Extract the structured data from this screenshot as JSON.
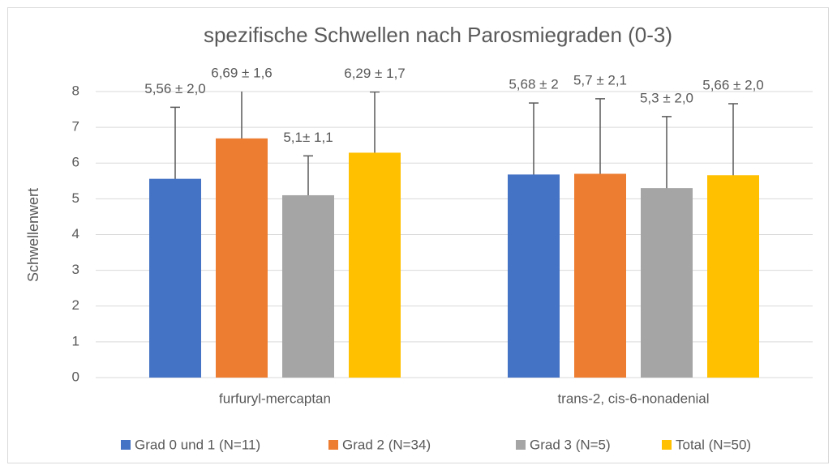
{
  "chart_data": {
    "type": "bar",
    "title": "spezifische Schwellen nach Parosmiegraden (0-3)",
    "ylabel": "Schwellenwert",
    "categories": [
      "furfuryl-mercaptan",
      "trans-2, cis-6-nonadenial"
    ],
    "series": [
      {
        "name": "Grad 0 und 1 (N=11)",
        "color": "#4472c4",
        "values": [
          5.56,
          5.68
        ],
        "errors": [
          2.0,
          2
        ],
        "value_labels": [
          "5,56 ± 2,0",
          "5,68 ± 2"
        ]
      },
      {
        "name": "Grad 2 (N=34)",
        "color": "#ed7d31",
        "values": [
          6.69,
          5.7
        ],
        "errors": [
          1.6,
          2.1
        ],
        "value_labels": [
          "6,69 ± 1,6",
          "5,7 ± 2,1"
        ]
      },
      {
        "name": "Grad 3 (N=5)",
        "color": "#a5a5a5",
        "values": [
          5.1,
          5.3
        ],
        "errors": [
          1.1,
          2.0
        ],
        "value_labels": [
          "5,1± 1,1",
          "5,3 ± 2,0"
        ]
      },
      {
        "name": "Total (N=50)",
        "color": "#ffc000",
        "values": [
          6.29,
          5.66
        ],
        "errors": [
          1.7,
          2.0
        ],
        "value_labels": [
          "6,29 ± 1,7",
          "5,66 ± 2,0"
        ]
      }
    ],
    "ylim": [
      0,
      8
    ],
    "yticks": [
      0,
      1,
      2,
      3,
      4,
      5,
      6,
      7,
      8
    ],
    "grid": true,
    "legend": "bottom"
  }
}
